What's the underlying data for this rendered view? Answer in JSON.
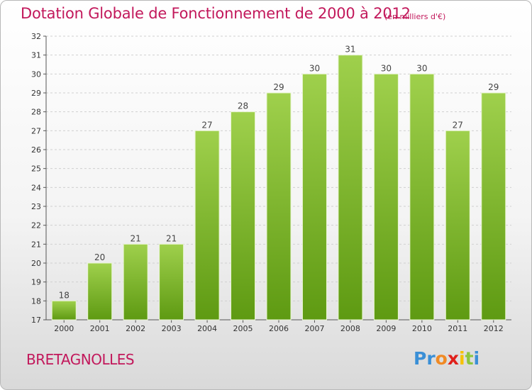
{
  "title": "Dotation Globale de Fonctionnement de 2000 à 2012",
  "unit": "(en milliers d'€)",
  "commune": "BRETAGNOLLES",
  "logo": {
    "letters": [
      "P",
      "r",
      "o",
      "x",
      "i",
      "t",
      "i"
    ],
    "colors": [
      "#3a8fd6",
      "#3a8fd6",
      "#f08a24",
      "#e0201b",
      "#f6c200",
      "#8cc63e",
      "#3a8fd6"
    ]
  },
  "colors": {
    "bar_light": "#9fd04c",
    "bar_dark": "#5e9a12",
    "title": "#c2185b",
    "grid": "#d0d0d0"
  },
  "chart_data": {
    "type": "bar",
    "categories": [
      "2000",
      "2001",
      "2002",
      "2003",
      "2004",
      "2005",
      "2006",
      "2007",
      "2008",
      "2009",
      "2010",
      "2011",
      "2012"
    ],
    "values": [
      18,
      20,
      21,
      21,
      27,
      28,
      29,
      30,
      31,
      30,
      30,
      27,
      29
    ],
    "ylim": [
      17,
      32
    ],
    "yticks": [
      17,
      18,
      19,
      20,
      21,
      22,
      23,
      24,
      25,
      26,
      27,
      28,
      29,
      30,
      31,
      32
    ],
    "title": "Dotation Globale de Fonctionnement de 2000 à 2012",
    "xlabel": "",
    "ylabel": "",
    "grid": true
  }
}
